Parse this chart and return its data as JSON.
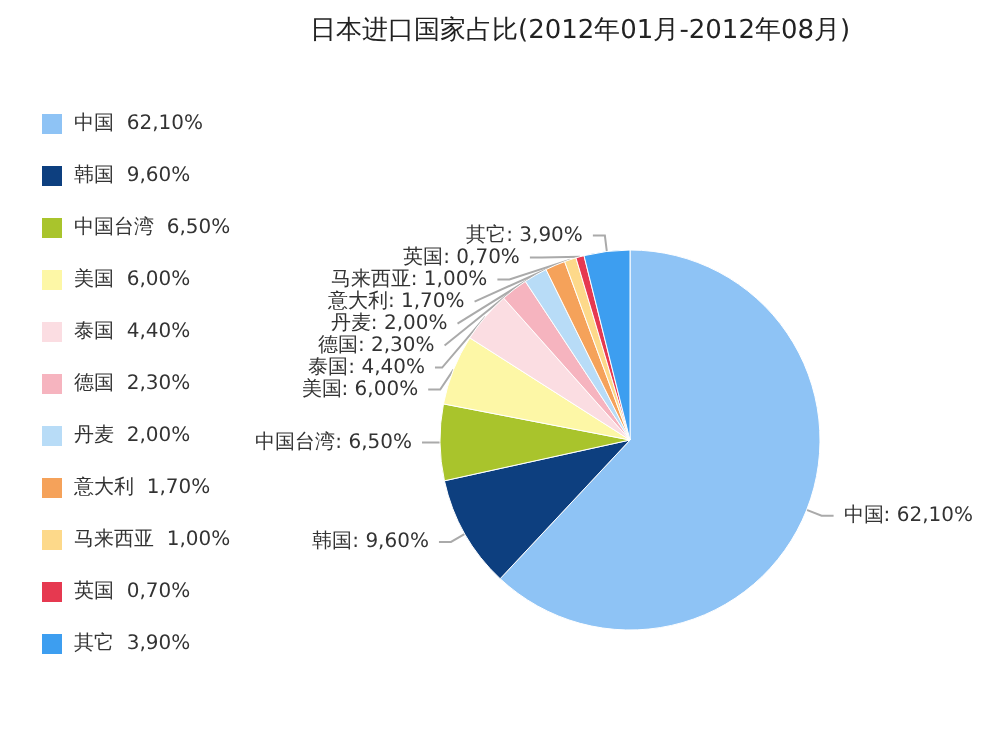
{
  "chart_data": {
    "type": "pie",
    "title": "日本进口国家占比(2012年01月-2012年08月)",
    "categories": [
      "中国",
      "韩国",
      "中国台湾",
      "美国",
      "泰国",
      "德国",
      "丹麦",
      "意大利",
      "马来西亚",
      "英国",
      "其它"
    ],
    "values": [
      62.1,
      9.6,
      6.5,
      6.0,
      4.4,
      2.3,
      2.0,
      1.7,
      1.0,
      0.7,
      3.9
    ],
    "value_labels": [
      "62,10%",
      "9,60%",
      "6,50%",
      "6,00%",
      "4,40%",
      "2,30%",
      "2,00%",
      "1,70%",
      "1,00%",
      "0,70%",
      "3,90%"
    ],
    "colors": [
      "#8ec3f5",
      "#0d3f7f",
      "#a9c42c",
      "#fdf7a6",
      "#fbdde2",
      "#f6b4bf",
      "#b8dcf7",
      "#f5a25a",
      "#fdd98a",
      "#e63950",
      "#3d9ef0"
    ],
    "legend": "left"
  }
}
